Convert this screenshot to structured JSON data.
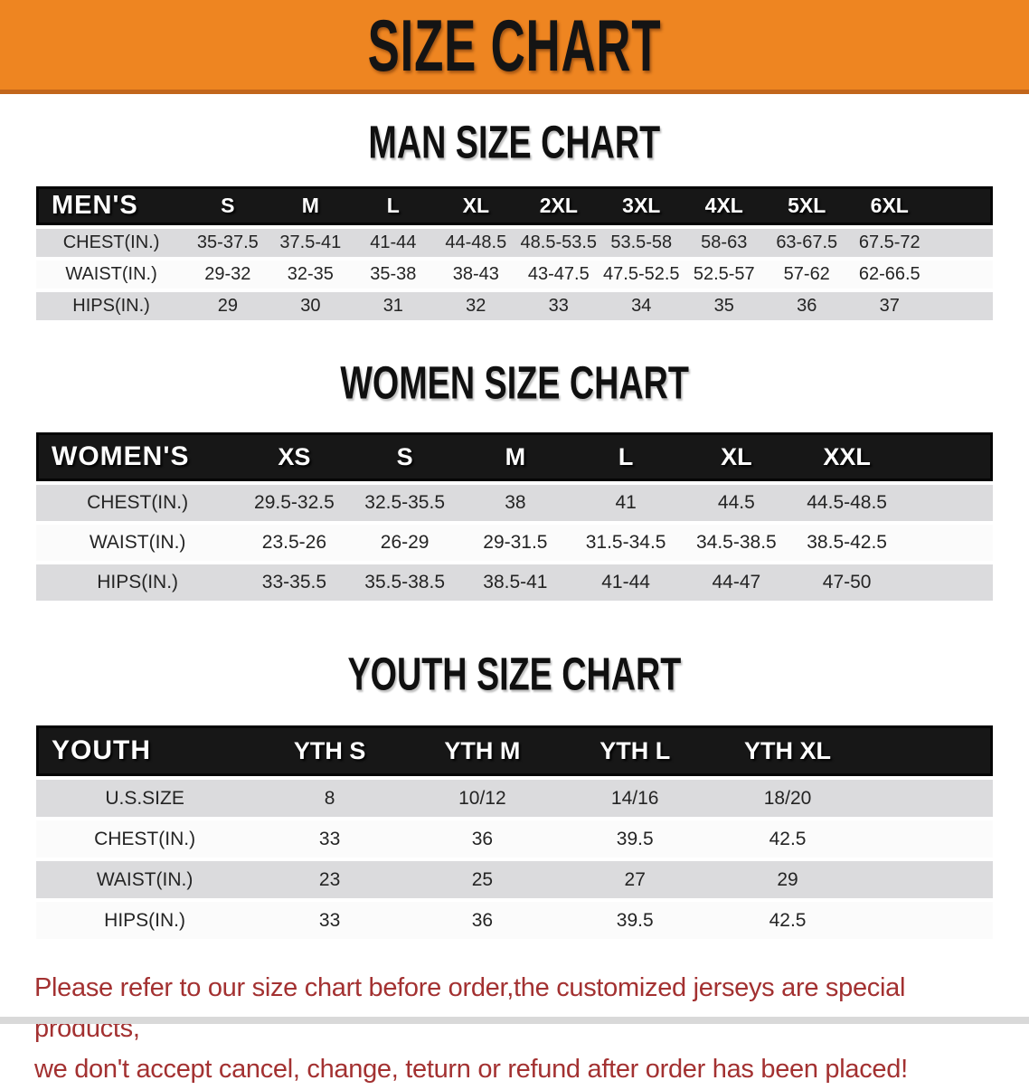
{
  "banner": {
    "title": "SIZE CHART"
  },
  "sections": [
    {
      "heading": "MAN SIZE CHART",
      "table": {
        "header": [
          "MEN'S",
          "S",
          "M",
          "L",
          "XL",
          "2XL",
          "3XL",
          "4XL",
          "5XL",
          "6XL"
        ],
        "rows": [
          {
            "label": "CHEST(IN.)",
            "values": [
              "35-37.5",
              "37.5-41",
              "41-44",
              "44-48.5",
              "48.5-53.5",
              "53.5-58",
              "58-63",
              "63-67.5",
              "67.5-72"
            ]
          },
          {
            "label": "WAIST(IN.)",
            "values": [
              "29-32",
              "32-35",
              "35-38",
              "38-43",
              "43-47.5",
              "47.5-52.5",
              "52.5-57",
              "57-62",
              "62-66.5"
            ]
          },
          {
            "label": "HIPS(IN.)",
            "values": [
              "29",
              "30",
              "31",
              "32",
              "33",
              "34",
              "35",
              "36",
              "37"
            ]
          }
        ]
      }
    },
    {
      "heading": "WOMEN SIZE CHART",
      "table": {
        "header": [
          "WOMEN'S",
          "XS",
          "S",
          "M",
          "L",
          "XL",
          "XXL"
        ],
        "rows": [
          {
            "label": "CHEST(IN.)",
            "values": [
              "29.5-32.5",
              "32.5-35.5",
              "38",
              "41",
              "44.5",
              "44.5-48.5"
            ]
          },
          {
            "label": "WAIST(IN.)",
            "values": [
              "23.5-26",
              "26-29",
              "29-31.5",
              "31.5-34.5",
              "34.5-38.5",
              "38.5-42.5"
            ]
          },
          {
            "label": "HIPS(IN.)",
            "values": [
              "33-35.5",
              "35.5-38.5",
              "38.5-41",
              "41-44",
              "44-47",
              "47-50"
            ]
          }
        ]
      }
    },
    {
      "heading": "YOUTH SIZE CHART",
      "table": {
        "header": [
          "YOUTH",
          "YTH S",
          "YTH M",
          "YTH L",
          "YTH XL"
        ],
        "rows": [
          {
            "label": "U.S.SIZE",
            "values": [
              "8",
              "10/12",
              "14/16",
              "18/20"
            ]
          },
          {
            "label": "CHEST(IN.)",
            "values": [
              "33",
              "36",
              "39.5",
              "42.5"
            ]
          },
          {
            "label": "WAIST(IN.)",
            "values": [
              "23",
              "25",
              "27",
              "29"
            ]
          },
          {
            "label": "HIPS(IN.)",
            "values": [
              "33",
              "36",
              "39.5",
              "42.5"
            ]
          }
        ]
      }
    }
  ],
  "disclaimer": {
    "line1": "Please refer to our size chart before order,the customized jerseys are special products,",
    "line2": "we don't accept cancel, change, teturn or refund after order has been placed!"
  },
  "colors": {
    "banner_orange": "#ee8521",
    "banner_edge": "#c2661b",
    "table_header_black": "#171717",
    "row_gray": "#dbdbdd",
    "row_white": "#fbfbfb",
    "disclaimer_red": "#a33131",
    "bottom_strip_gray": "#d9d9d9"
  }
}
